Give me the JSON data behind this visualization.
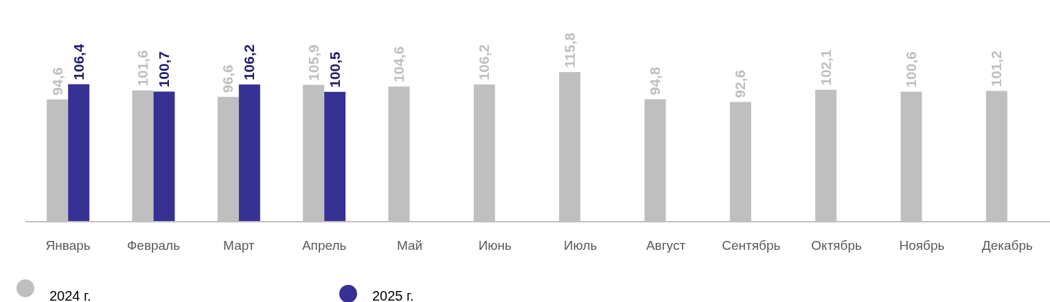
{
  "chart_data": {
    "type": "bar",
    "categories": [
      "Январь",
      "Февраль",
      "Март",
      "Апрель",
      "Май",
      "Июнь",
      "Июль",
      "Август",
      "Сентябрь",
      "Октябрь",
      "Ноябрь",
      "Декабрь"
    ],
    "series": [
      {
        "name": "2024 г.",
        "color": "#bfbfbf",
        "values": [
          94.6,
          101.6,
          96.6,
          105.9,
          104.6,
          106.2,
          115.8,
          94.8,
          92.6,
          102.1,
          100.6,
          101.2
        ],
        "value_labels": [
          "94,6",
          "101,6",
          "96,6",
          "105,9",
          "104,6",
          "106,2",
          "115,8",
          "94,8",
          "92,6",
          "102,1",
          "100,6",
          "101,2"
        ]
      },
      {
        "name": "2025 г.",
        "color": "#373193",
        "values": [
          106.4,
          100.7,
          106.2,
          100.5,
          null,
          null,
          null,
          null,
          null,
          null,
          null,
          null
        ],
        "value_labels": [
          "106,4",
          "100,7",
          "106,2",
          "100,5",
          null,
          null,
          null,
          null,
          null,
          null,
          null,
          null
        ]
      }
    ],
    "legend": "bottom left"
  }
}
